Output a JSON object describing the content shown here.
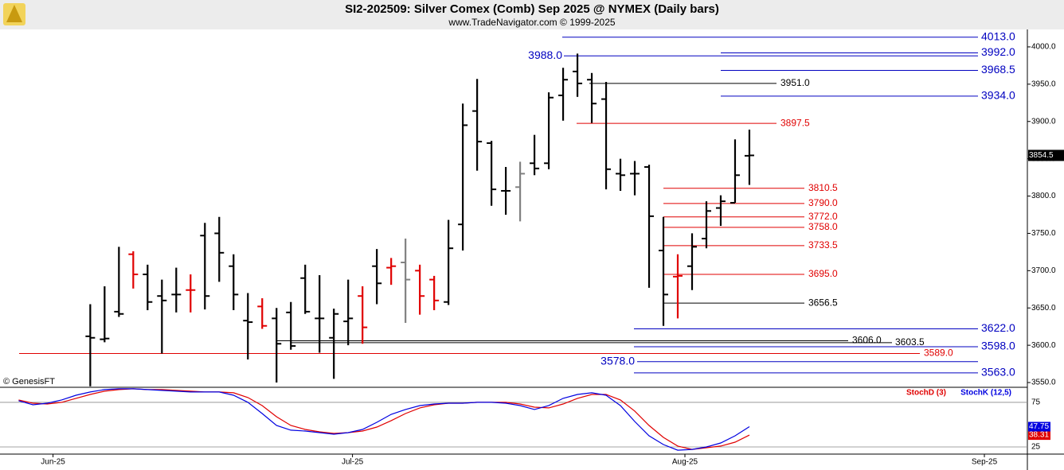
{
  "header": {
    "title": "SI2-202509:  Silver Comex (Comb) Sep 2025 @ NYMEX  (Daily bars)",
    "subtitle": "www.TradeNavigator.com © 1999-2025",
    "watermark": "© GenesisFT"
  },
  "chart_data": [
    {
      "type": "ohlc",
      "x": [
        0,
        1,
        2,
        3,
        4,
        5,
        6,
        7,
        8,
        9,
        10,
        11,
        12,
        13,
        14,
        15,
        16,
        17,
        18,
        19,
        20,
        21,
        22,
        23,
        24,
        25,
        26,
        27,
        28,
        29,
        30,
        31,
        32,
        33,
        34,
        35,
        36,
        37,
        38,
        39,
        40,
        41,
        42,
        43,
        44,
        45,
        46
      ],
      "open": [
        3612,
        3608,
        3645,
        3722,
        3695,
        3666,
        3668,
        3674,
        3747,
        3750,
        3706,
        3633,
        3652,
        3636,
        3644,
        3690,
        3636,
        3610,
        3632,
        3666,
        3706,
        3704,
        3711,
        3700,
        3688,
        3658,
        3762,
        3914,
        3871,
        3807,
        3812,
        3844,
        3844,
        3935,
        3967,
        3956,
        3930,
        3830,
        3830,
        3839,
        3727,
        3692,
        3706,
        3743,
        3784,
        3791,
        3854
      ],
      "high": [
        3655,
        3679,
        3732,
        3726,
        3708,
        3688,
        3704,
        3695,
        3764,
        3772,
        3722,
        3670,
        3663,
        3650,
        3658,
        3708,
        3694,
        3649,
        3688,
        3679,
        3729,
        3717,
        3743,
        3708,
        3693,
        3768,
        3924,
        3957,
        3874,
        3839,
        3846,
        3882,
        3939,
        3972,
        3991,
        3965,
        3953,
        3850,
        3847,
        3842,
        3772,
        3722,
        3750,
        3793,
        3801,
        3876,
        3889
      ],
      "low": [
        3545,
        3604,
        3638,
        3676,
        3647,
        3589,
        3644,
        3644,
        3648,
        3685,
        3647,
        3581,
        3622,
        3550,
        3594,
        3642,
        3590,
        3555,
        3600,
        3602,
        3655,
        3681,
        3630,
        3641,
        3647,
        3654,
        3727,
        3834,
        3787,
        3775,
        3766,
        3828,
        3836,
        3901,
        3933,
        3898,
        3809,
        3807,
        3801,
        3677,
        3626,
        3636,
        3674,
        3730,
        3760,
        3791,
        3815
      ],
      "close": [
        3610,
        3609,
        3642,
        3695,
        3658,
        3660,
        3668,
        3674,
        3666,
        3724,
        3668,
        3631,
        3626,
        3602,
        3599,
        3645,
        3636,
        3642,
        3636,
        3624,
        3683,
        3706,
        3688,
        3666,
        3660,
        3730,
        3895,
        3873,
        3809,
        3807,
        3830,
        3837,
        3932,
        3956,
        3951,
        3924,
        3836,
        3828,
        3830,
        3773,
        3668,
        3693,
        3732,
        3780,
        3793,
        3828,
        3854.5
      ],
      "colors": [
        "#000",
        "#000",
        "#000",
        "#e00000",
        "#000",
        "#000",
        "#000",
        "#e00000",
        "#000",
        "#000",
        "#000",
        "#000",
        "#e00000",
        "#000",
        "#000",
        "#000",
        "#000",
        "#000",
        "#000",
        "#e00000",
        "#000",
        "#e00000",
        "#808080",
        "#e00000",
        "#e00000",
        "#000",
        "#000",
        "#000",
        "#000",
        "#000",
        "#808080",
        "#000",
        "#000",
        "#000",
        "#000",
        "#000",
        "#000",
        "#000",
        "#000",
        "#000",
        "#000",
        "#e00000",
        "#000",
        "#000",
        "#000",
        "#000",
        "#000"
      ],
      "xlim": [
        -6.3,
        65.4
      ],
      "ylim": [
        3544.7,
        4023.4
      ],
      "yticks": [
        {
          "value": 3550,
          "label": "3550.0"
        },
        {
          "value": 3600,
          "label": "3600.0"
        },
        {
          "value": 3650,
          "label": "3650.0"
        },
        {
          "value": 3700,
          "label": "3700.0"
        },
        {
          "value": 3750,
          "label": "3750.0"
        },
        {
          "value": 3800,
          "label": "3800.0"
        },
        {
          "value": 3850,
          "label": "3850.0"
        },
        {
          "value": 3900,
          "label": "3900.0"
        },
        {
          "value": 3950,
          "label": "3950.0"
        },
        {
          "value": 4000,
          "label": "4000.0"
        }
      ],
      "levels": [
        {
          "value": 4013,
          "label": "4013.0",
          "color": "#0000c0"
        },
        {
          "value": 3992,
          "label": "3992.0",
          "color": "#0000c0"
        },
        {
          "value": 3988,
          "label": "3988.0",
          "color": "#0000c0"
        },
        {
          "value": 3968.5,
          "label": "3968.5",
          "color": "#0000c0"
        },
        {
          "value": 3951,
          "label": "3951.0",
          "color": "#000000"
        },
        {
          "value": 3934,
          "label": "3934.0",
          "color": "#0000c0"
        },
        {
          "value": 3897.5,
          "label": "3897.5",
          "color": "#e00000"
        },
        {
          "value": 3810.5,
          "label": "3810.5",
          "color": "#e00000"
        },
        {
          "value": 3790,
          "label": "3790.0",
          "color": "#e00000"
        },
        {
          "value": 3772,
          "label": "3772.0",
          "color": "#e00000"
        },
        {
          "value": 3758,
          "label": "3758.0",
          "color": "#e00000"
        },
        {
          "value": 3733.5,
          "label": "3733.5",
          "color": "#e00000"
        },
        {
          "value": 3695,
          "label": "3695.0",
          "color": "#e00000"
        },
        {
          "value": 3656.5,
          "label": "3656.5",
          "color": "#000000"
        },
        {
          "value": 3622,
          "label": "3622.0",
          "color": "#0000c0"
        },
        {
          "value": 3606,
          "label": "3606.0",
          "color": "#000000"
        },
        {
          "value": 3603.5,
          "label": "3603.5",
          "color": "#000000"
        },
        {
          "value": 3598,
          "label": "3598.0",
          "color": "#0000c0"
        },
        {
          "value": 3589,
          "label": "3589.0",
          "color": "#e00000"
        },
        {
          "value": 3578,
          "label": "3578.0",
          "color": "#0000c0"
        },
        {
          "value": 3563,
          "label": "3563.0",
          "color": "#0000c0"
        }
      ]
    },
    {
      "type": "line",
      "x": [
        -5,
        -4,
        -3,
        -2,
        -1,
        0,
        1,
        2,
        3,
        4,
        5,
        6,
        7,
        8,
        9,
        10,
        11,
        12,
        13,
        14,
        15,
        16,
        17,
        18,
        19,
        20,
        21,
        22,
        23,
        24,
        25,
        26,
        27,
        28,
        29,
        30,
        31,
        32,
        33,
        34,
        35,
        36,
        37,
        38,
        39,
        40,
        41,
        42,
        43,
        44,
        45,
        46
      ],
      "series": [
        {
          "name": "StochD (3)",
          "color": "#e00000",
          "values": [
            77.7,
            74.1,
            73.2,
            75,
            79.5,
            83.9,
            87.5,
            89.3,
            90.2,
            89.3,
            89.3,
            88.4,
            87.5,
            86.6,
            86.6,
            85.7,
            80.4,
            71.4,
            58.9,
            49.1,
            44.6,
            42,
            40.2,
            41.1,
            42.9,
            47.3,
            54.5,
            62.5,
            68.8,
            72.3,
            74.1,
            74.1,
            75,
            75,
            75,
            73.2,
            69.6,
            68.8,
            73.2,
            79.5,
            83.9,
            83.9,
            77.7,
            65.2,
            49.1,
            35.7,
            26,
            22.3,
            24.1,
            26,
            30.4,
            38.31
          ]
        },
        {
          "name": "StochK (12,5)",
          "color": "#0000e0",
          "values": [
            76.8,
            72.3,
            74.1,
            77.7,
            83,
            86.6,
            89.3,
            90.2,
            90.2,
            89.3,
            88.4,
            87.5,
            86.6,
            86.6,
            86.6,
            83,
            75,
            62.5,
            49.1,
            43.8,
            42.9,
            41.1,
            39.3,
            41.1,
            44.6,
            52.7,
            61.6,
            67,
            71.4,
            73.2,
            74.1,
            74.1,
            75,
            75,
            74.1,
            71.4,
            67,
            71.5,
            79.5,
            83.9,
            85.7,
            83,
            71.4,
            53.6,
            37.5,
            27.7,
            21.4,
            22.3,
            25,
            29.5,
            37.5,
            47.75
          ]
        }
      ],
      "xlim": [
        -6.3,
        65.4
      ],
      "ylim": [
        17.9,
        91
      ],
      "yticks": [
        25,
        75
      ],
      "xticks": [
        {
          "value": -2.6,
          "label": "Jun-25"
        },
        {
          "value": 18.3,
          "label": "Jul-25"
        },
        {
          "value": 41.5,
          "label": "Aug-25"
        },
        {
          "value": 62.4,
          "label": "Sep-25"
        }
      ]
    }
  ]
}
